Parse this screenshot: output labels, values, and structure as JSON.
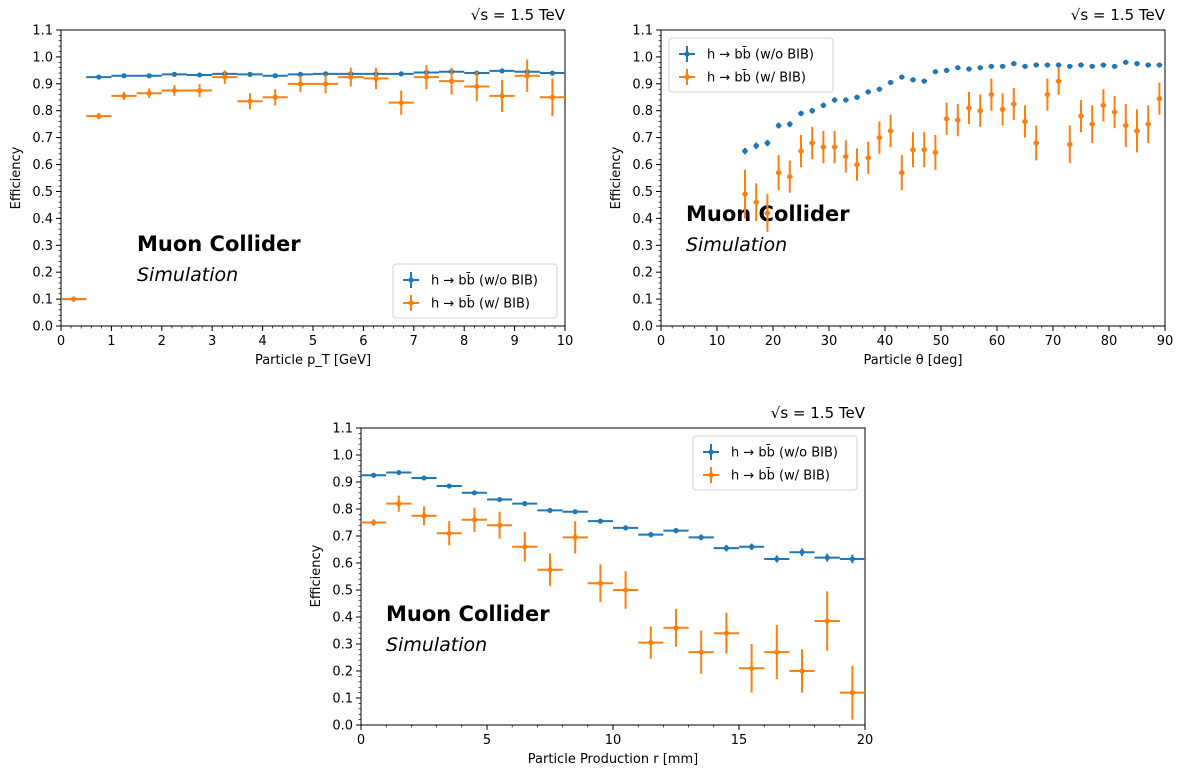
{
  "figure_text": {
    "experiment": "Muon Collider",
    "status": "Simulation",
    "energy_label": "√s = 1.5 TeV",
    "ylabel": "Efficiency"
  },
  "legend_entries": [
    "h → bb̄ (w/o BIB)",
    "h → bb̄ (w/ BIB)"
  ],
  "colors": {
    "without_bib": "#1f77b4",
    "with_bib": "#ff7f0e"
  },
  "chart_data": [
    {
      "type": "scatter",
      "xlabel": "Particle p_T [GeV]",
      "ylabel": "Efficiency",
      "xlim": [
        0,
        10
      ],
      "ylim": [
        0,
        1.1
      ],
      "xticks": [
        0,
        1,
        2,
        3,
        4,
        5,
        6,
        7,
        8,
        9,
        10
      ],
      "yticks": [
        0.0,
        0.1,
        0.2,
        0.3,
        0.4,
        0.5,
        0.6,
        0.7,
        0.8,
        0.9,
        1.0,
        1.1
      ],
      "legend": "lower-right",
      "series": [
        {
          "name": "h → bb̄ (w/o BIB)",
          "x_half_width": 0.25,
          "x": [
            0.25,
            0.75,
            1.25,
            1.75,
            2.25,
            2.75,
            3.25,
            3.75,
            4.25,
            4.75,
            5.25,
            5.75,
            6.25,
            6.75,
            7.25,
            7.75,
            8.25,
            8.75,
            9.25,
            9.75
          ],
          "y": [
            0.1,
            0.925,
            0.93,
            0.93,
            0.935,
            0.933,
            0.937,
            0.935,
            0.93,
            0.935,
            0.937,
            0.937,
            0.937,
            0.937,
            0.942,
            0.945,
            0.94,
            0.948,
            0.945,
            0.94
          ],
          "yerr": [
            0.003,
            0.004,
            0.004,
            0.004,
            0.004,
            0.004,
            0.004,
            0.004,
            0.005,
            0.005,
            0.005,
            0.005,
            0.005,
            0.006,
            0.006,
            0.006,
            0.006,
            0.007,
            0.007,
            0.007
          ]
        },
        {
          "name": "h → bb̄ (w/ BIB)",
          "x_half_width": 0.25,
          "x": [
            0.25,
            0.75,
            1.25,
            1.75,
            2.25,
            2.75,
            3.25,
            3.75,
            4.25,
            4.75,
            5.25,
            5.75,
            6.25,
            6.75,
            7.25,
            7.75,
            8.25,
            8.75,
            9.25,
            9.75
          ],
          "y": [
            0.1,
            0.78,
            0.855,
            0.865,
            0.875,
            0.875,
            0.925,
            0.835,
            0.85,
            0.9,
            0.9,
            0.925,
            0.92,
            0.83,
            0.925,
            0.91,
            0.89,
            0.855,
            0.93,
            0.85
          ],
          "yerr": [
            0.005,
            0.012,
            0.015,
            0.018,
            0.02,
            0.025,
            0.025,
            0.03,
            0.03,
            0.03,
            0.035,
            0.035,
            0.04,
            0.045,
            0.045,
            0.05,
            0.055,
            0.06,
            0.06,
            0.07
          ]
        }
      ]
    },
    {
      "type": "scatter",
      "xlabel": "Particle θ [deg]",
      "ylabel": "Efficiency",
      "xlim": [
        0,
        90
      ],
      "ylim": [
        0,
        1.1
      ],
      "xticks": [
        0,
        10,
        20,
        30,
        40,
        50,
        60,
        70,
        80,
        90
      ],
      "yticks": [
        0.0,
        0.1,
        0.2,
        0.3,
        0.4,
        0.5,
        0.6,
        0.7,
        0.8,
        0.9,
        1.0,
        1.1
      ],
      "legend": "upper-left",
      "series": [
        {
          "name": "h → bb̄ (w/o BIB)",
          "x_half_width": 0.5,
          "x": [
            15,
            17,
            19,
            21,
            23,
            25,
            27,
            29,
            31,
            33,
            35,
            37,
            39,
            41,
            43,
            45,
            47,
            49,
            51,
            53,
            55,
            57,
            59,
            61,
            63,
            65,
            67,
            69,
            71,
            73,
            75,
            77,
            79,
            81,
            83,
            85,
            87,
            89
          ],
          "y": [
            0.65,
            0.67,
            0.68,
            0.745,
            0.75,
            0.79,
            0.8,
            0.82,
            0.84,
            0.84,
            0.85,
            0.87,
            0.88,
            0.905,
            0.925,
            0.915,
            0.91,
            0.945,
            0.95,
            0.96,
            0.955,
            0.96,
            0.965,
            0.965,
            0.975,
            0.965,
            0.97,
            0.97,
            0.97,
            0.965,
            0.97,
            0.965,
            0.97,
            0.965,
            0.98,
            0.975,
            0.97,
            0.97
          ],
          "yerr": [
            0.012,
            0.012,
            0.012,
            0.011,
            0.011,
            0.01,
            0.01,
            0.01,
            0.01,
            0.01,
            0.009,
            0.009,
            0.009,
            0.008,
            0.008,
            0.008,
            0.008,
            0.007,
            0.007,
            0.007,
            0.007,
            0.007,
            0.007,
            0.007,
            0.006,
            0.006,
            0.006,
            0.006,
            0.006,
            0.006,
            0.006,
            0.006,
            0.006,
            0.006,
            0.006,
            0.006,
            0.006,
            0.006
          ]
        },
        {
          "name": "h → bb̄ (w/ BIB)",
          "x_half_width": 0.5,
          "x": [
            15,
            17,
            19,
            21,
            23,
            25,
            27,
            29,
            31,
            33,
            35,
            37,
            39,
            41,
            43,
            45,
            47,
            49,
            51,
            53,
            55,
            57,
            59,
            61,
            63,
            65,
            67,
            69,
            71,
            73,
            75,
            77,
            79,
            81,
            83,
            85,
            87,
            89
          ],
          "y": [
            0.49,
            0.46,
            0.42,
            0.57,
            0.555,
            0.65,
            0.68,
            0.665,
            0.665,
            0.63,
            0.6,
            0.625,
            0.7,
            0.725,
            0.57,
            0.655,
            0.655,
            0.645,
            0.77,
            0.765,
            0.81,
            0.8,
            0.86,
            0.805,
            0.825,
            0.76,
            0.68,
            0.86,
            0.91,
            0.675,
            0.78,
            0.75,
            0.82,
            0.795,
            0.745,
            0.725,
            0.75,
            0.845
          ],
          "yerr": [
            0.09,
            0.07,
            0.07,
            0.065,
            0.06,
            0.06,
            0.06,
            0.06,
            0.06,
            0.06,
            0.06,
            0.06,
            0.06,
            0.06,
            0.065,
            0.065,
            0.065,
            0.065,
            0.06,
            0.06,
            0.06,
            0.06,
            0.06,
            0.06,
            0.06,
            0.06,
            0.065,
            0.06,
            0.05,
            0.07,
            0.06,
            0.07,
            0.06,
            0.06,
            0.08,
            0.08,
            0.07,
            0.06
          ]
        }
      ]
    },
    {
      "type": "scatter",
      "xlabel": "Particle Production r [mm]",
      "ylabel": "Efficiency",
      "xlim": [
        0,
        20
      ],
      "ylim": [
        0,
        1.1
      ],
      "xticks": [
        0,
        5,
        10,
        15,
        20
      ],
      "yticks": [
        0.0,
        0.1,
        0.2,
        0.3,
        0.4,
        0.5,
        0.6,
        0.7,
        0.8,
        0.9,
        1.0,
        1.1
      ],
      "legend": "upper-right",
      "series": [
        {
          "name": "h → bb̄ (w/o BIB)",
          "x_half_width": 0.5,
          "x": [
            0.5,
            1.5,
            2.5,
            3.5,
            4.5,
            5.5,
            6.5,
            7.5,
            8.5,
            9.5,
            10.5,
            11.5,
            12.5,
            13.5,
            14.5,
            15.5,
            16.5,
            17.5,
            18.5,
            19.5
          ],
          "y": [
            0.925,
            0.935,
            0.915,
            0.885,
            0.86,
            0.835,
            0.82,
            0.795,
            0.79,
            0.755,
            0.73,
            0.705,
            0.72,
            0.695,
            0.655,
            0.66,
            0.615,
            0.64,
            0.62,
            0.615
          ],
          "yerr": [
            0.005,
            0.005,
            0.006,
            0.006,
            0.007,
            0.007,
            0.008,
            0.008,
            0.008,
            0.009,
            0.009,
            0.01,
            0.01,
            0.011,
            0.012,
            0.012,
            0.013,
            0.014,
            0.015,
            0.016
          ]
        },
        {
          "name": "h → bb̄ (w/ BIB)",
          "x_half_width": 0.5,
          "x": [
            0.5,
            1.5,
            2.5,
            3.5,
            4.5,
            5.5,
            6.5,
            7.5,
            8.5,
            9.5,
            10.5,
            11.5,
            12.5,
            13.5,
            14.5,
            15.5,
            16.5,
            17.5,
            18.5,
            19.5
          ],
          "y": [
            0.75,
            0.82,
            0.775,
            0.71,
            0.76,
            0.74,
            0.66,
            0.575,
            0.695,
            0.525,
            0.5,
            0.305,
            0.36,
            0.27,
            0.34,
            0.21,
            0.27,
            0.2,
            0.385,
            0.12
          ],
          "yerr": [
            0.012,
            0.03,
            0.035,
            0.045,
            0.045,
            0.05,
            0.055,
            0.06,
            0.06,
            0.07,
            0.07,
            0.06,
            0.07,
            0.08,
            0.075,
            0.09,
            0.1,
            0.08,
            0.11,
            0.1
          ]
        }
      ]
    }
  ]
}
